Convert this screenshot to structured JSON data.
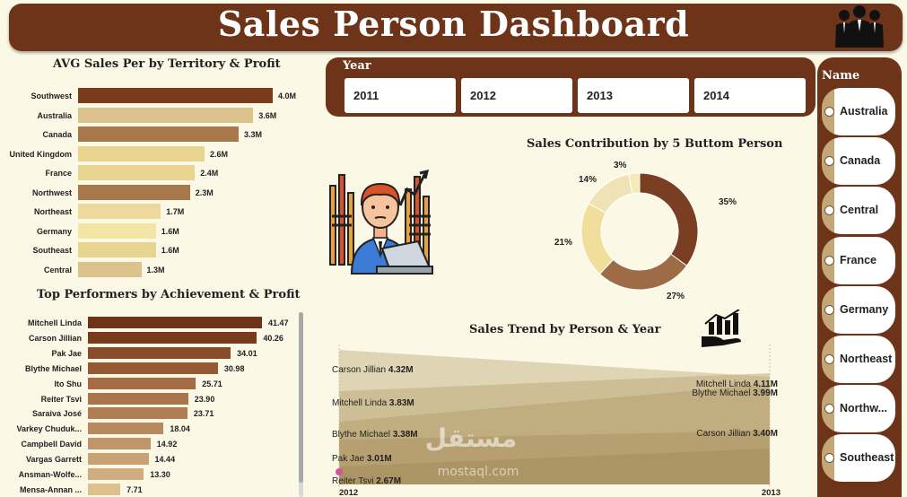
{
  "header": {
    "title": "Sales Person Dashboard",
    "icon": "people-group-icon"
  },
  "territory_chart": {
    "title": "AVG Sales Per by Territory & Profit",
    "chart_data": {
      "type": "bar",
      "orientation": "horizontal",
      "categories": [
        "Southwest",
        "Australia",
        "Canada",
        "United Kingdom",
        "France",
        "Northwest",
        "Northeast",
        "Germany",
        "Southeast",
        "Central"
      ],
      "values": [
        4.0,
        3.6,
        3.3,
        2.6,
        2.4,
        2.3,
        1.7,
        1.6,
        1.6,
        1.3
      ],
      "value_labels": [
        "4.0M",
        "3.6M",
        "3.3M",
        "2.6M",
        "2.4M",
        "2.3M",
        "1.7M",
        "1.6M",
        "1.6M",
        "1.3M"
      ],
      "colors": [
        "#7a3a1c",
        "#dcc38e",
        "#a8774a",
        "#e8d38f",
        "#e8d38f",
        "#a8774a",
        "#edd99b",
        "#f3e6a5",
        "#e8d38f",
        "#dcc38e"
      ],
      "xlim": [
        0,
        4.0
      ]
    }
  },
  "performer_chart": {
    "title": "Top Performers by Achievement & Profit",
    "chart_data": {
      "type": "bar",
      "orientation": "horizontal",
      "categories": [
        "Mitchell Linda",
        "Carson Jillian",
        "Pak Jae",
        "Blythe Michael",
        "Ito Shu",
        "Reiter Tsvi",
        "Saraiva José",
        "Varkey Chuduk...",
        "Campbell David",
        "Vargas Garrett",
        "Ansman-Wolfe...",
        "Mensa-Annan ..."
      ],
      "values": [
        41.47,
        40.26,
        34.01,
        30.98,
        25.71,
        23.9,
        23.71,
        18.04,
        14.92,
        14.44,
        13.3,
        7.71
      ],
      "value_labels": [
        "41.47",
        "40.26",
        "34.01",
        "30.98",
        "25.71",
        "23.90",
        "23.71",
        "18.04",
        "14.92",
        "14.44",
        "13.30",
        "7.71"
      ],
      "colors": [
        "#6e3419",
        "#7a3a1c",
        "#8a4d2a",
        "#965a33",
        "#a56c44",
        "#ab754c",
        "#b07d55",
        "#b9895e",
        "#c09569",
        "#c8a174",
        "#d0ad80",
        "#dcc08e"
      ],
      "xlim": [
        0,
        41.47
      ]
    }
  },
  "year_slicer": {
    "title": "Year",
    "options": [
      "2011",
      "2012",
      "2013",
      "2014"
    ]
  },
  "donut_chart": {
    "title": "Sales Contribution by 5 Buttom Person",
    "chart_data": {
      "type": "pie",
      "values": [
        35,
        27,
        21,
        14,
        3
      ],
      "labels": [
        "35%",
        "27%",
        "21%",
        "14%",
        "3%"
      ],
      "colors": [
        "#7a3f22",
        "#9d6c46",
        "#f0de9a",
        "#efe3b5",
        "#f4eab6"
      ]
    }
  },
  "trend_chart": {
    "title": "Sales Trend by Person & Year",
    "icon": "hand-growth-chart-icon",
    "chart_data": {
      "type": "area",
      "x": [
        "2012",
        "2013"
      ],
      "series": [
        {
          "name": "Carson Jillian",
          "values": [
            4.32,
            3.4
          ],
          "labels": [
            "4.32M",
            "3.40M"
          ]
        },
        {
          "name": "Mitchell Linda",
          "values": [
            3.83,
            4.11
          ],
          "labels": [
            "3.83M",
            "4.11M"
          ]
        },
        {
          "name": "Blythe Michael",
          "values": [
            3.38,
            3.99
          ],
          "labels": [
            "3.38M",
            "3.99M"
          ]
        },
        {
          "name": "Pak Jae",
          "values": [
            3.01,
            null
          ],
          "labels": [
            "3.01M",
            ""
          ]
        },
        {
          "name": "Reiter Tsvi",
          "values": [
            2.67,
            null
          ],
          "labels": [
            "2.67M",
            ""
          ]
        }
      ],
      "colors": [
        "#c8b68a",
        "#bfab7d",
        "#b6a070",
        "#ad9665",
        "#a48c5a"
      ]
    }
  },
  "name_slicer": {
    "title": "Name",
    "options": [
      "Australia",
      "Canada",
      "Central",
      "France",
      "Germany",
      "Northeast",
      "Northw...",
      "Southeast"
    ]
  },
  "illustration": {
    "icon": "salesperson-laptop-icon"
  },
  "watermark": {
    "text": "مستقل",
    "subtext": "mostaql.com"
  }
}
